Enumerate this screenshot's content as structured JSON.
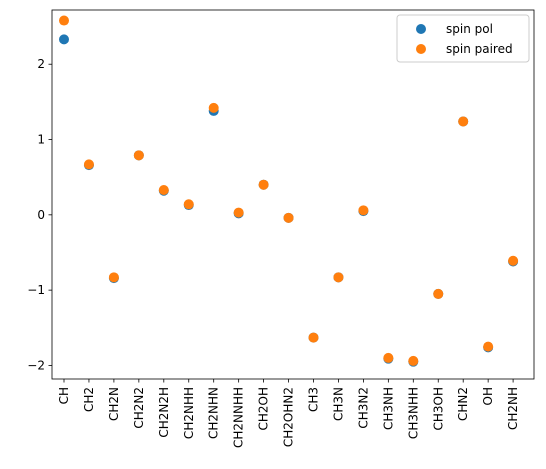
{
  "chart_data": {
    "type": "scatter",
    "title": "",
    "xlabel": "",
    "ylabel": "",
    "categories": [
      "CH",
      "CH2",
      "CH2N",
      "CH2N2",
      "CH2N2H",
      "CH2NHH",
      "CH2NHN",
      "CH2NNHH",
      "CH2OH",
      "CH2OHN2",
      "CH3",
      "CH3N",
      "CH3N2",
      "CH3NH",
      "CH3NHH",
      "CH3OH",
      "CHN2",
      "OH",
      "CH2NH"
    ],
    "ylim": [
      -2.18,
      2.72
    ],
    "yticks": [
      -2,
      -1,
      0,
      1,
      2
    ],
    "grid": false,
    "legend_position": "top-right",
    "series": [
      {
        "name": "spin pol",
        "color": "#1f77b4",
        "values": [
          2.33,
          0.66,
          -0.84,
          0.79,
          0.32,
          0.13,
          1.38,
          0.02,
          0.4,
          -0.04,
          -1.63,
          -0.83,
          0.05,
          -1.91,
          -1.95,
          -1.05,
          1.24,
          -1.76,
          -0.62
        ]
      },
      {
        "name": "spin paired",
        "color": "#ff7f0e",
        "values": [
          2.58,
          0.67,
          -0.83,
          0.79,
          0.33,
          0.14,
          1.42,
          0.03,
          0.4,
          -0.04,
          -1.63,
          -0.83,
          0.06,
          -1.9,
          -1.94,
          -1.05,
          1.24,
          -1.75,
          -0.61
        ]
      }
    ]
  }
}
